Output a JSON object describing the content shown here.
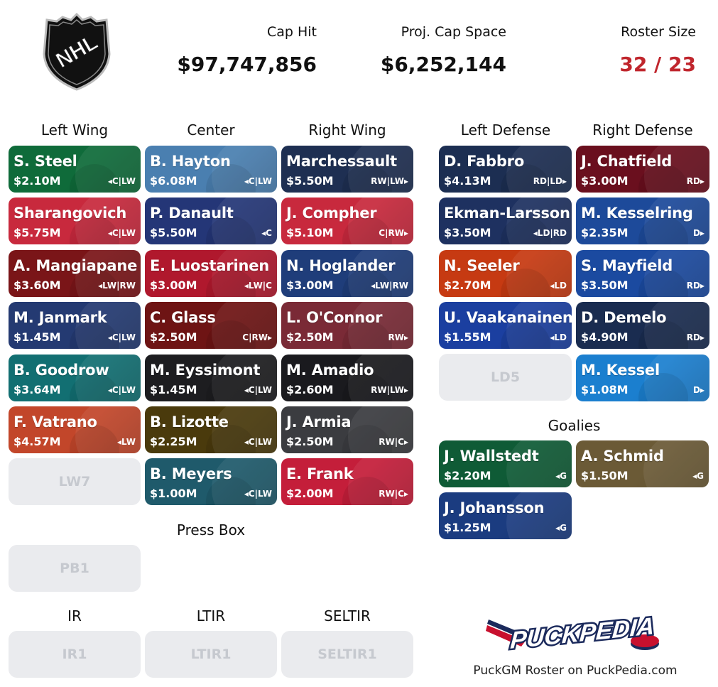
{
  "header": {
    "logo_text": "NHL",
    "cap_hit_label": "Cap Hit",
    "cap_hit_value": "$97,747,856",
    "cap_space_label": "Proj. Cap Space",
    "cap_space_value": "$6,252,144",
    "roster_size_label": "Roster Size",
    "roster_size_value": "32 / 23"
  },
  "sections": {
    "left_wing": "Left Wing",
    "center": "Center",
    "right_wing": "Right Wing",
    "left_defense": "Left Defense",
    "right_defense": "Right Defense",
    "goalies": "Goalies",
    "press_box": "Press Box",
    "ir": "IR",
    "ltir": "LTIR",
    "seltir": "SELTIR"
  },
  "left_wing": [
    {
      "name": "S. Steel",
      "salary": "$2.10M",
      "pos": "◂C|LW",
      "color": "#0f6b3a"
    },
    {
      "name": "Sharangovich",
      "salary": "$5.75M",
      "pos": "◂C|LW",
      "color": "#c8293d"
    },
    {
      "name": "A. Mangiapane",
      "salary": "$3.60M",
      "pos": "◂LW|RW",
      "color": "#7a1518"
    },
    {
      "name": "M. Janmark",
      "salary": "$1.45M",
      "pos": "◂C|LW",
      "color": "#243a72"
    },
    {
      "name": "B. Goodrow",
      "salary": "$3.64M",
      "pos": "◂C|LW",
      "color": "#126f72"
    },
    {
      "name": "F. Vatrano",
      "salary": "$4.57M",
      "pos": "◂LW",
      "color": "#c2462a"
    }
  ],
  "left_wing_empty": "LW7",
  "center": [
    {
      "name": "B. Hayton",
      "salary": "$6.08M",
      "pos": "◂C|LW",
      "color": "#4a7fb0"
    },
    {
      "name": "P. Danault",
      "salary": "$5.50M",
      "pos": "◂C",
      "color": "#243677"
    },
    {
      "name": "E. Luostarinen",
      "salary": "$3.00M",
      "pos": "◂LW|C",
      "color": "#b0182d"
    },
    {
      "name": "C. Glass",
      "salary": "$2.50M",
      "pos": "C|RW▸",
      "color": "#6e1414"
    },
    {
      "name": "M. Eyssimont",
      "salary": "$1.45M",
      "pos": "◂C|LW",
      "color": "#1d1d20"
    },
    {
      "name": "B. Lizotte",
      "salary": "$2.25M",
      "pos": "◂C|LW",
      "color": "#4a3a0c"
    },
    {
      "name": "B. Meyers",
      "salary": "$1.00M",
      "pos": "◂C|LW",
      "color": "#1f5a6b"
    }
  ],
  "right_wing": [
    {
      "name": "Marchessault",
      "salary": "$5.50M",
      "pos": "RW|LW▸",
      "color": "#1e2f52"
    },
    {
      "name": "J. Compher",
      "salary": "$5.10M",
      "pos": "C|RW▸",
      "color": "#c8293d"
    },
    {
      "name": "N. Hoglander",
      "salary": "$3.00M",
      "pos": "◂LW|RW",
      "color": "#1f3d7a"
    },
    {
      "name": "L. O'Connor",
      "salary": "$2.50M",
      "pos": "RW▸",
      "color": "#7a2a36"
    },
    {
      "name": "M. Amadio",
      "salary": "$2.60M",
      "pos": "RW|LW▸",
      "color": "#1a1a1e"
    },
    {
      "name": "J. Armia",
      "salary": "$2.50M",
      "pos": "RW|C▸",
      "color": "#3b3c40"
    },
    {
      "name": "E. Frank",
      "salary": "$2.00M",
      "pos": "RW|C▸",
      "color": "#c41e3a"
    }
  ],
  "left_defense": [
    {
      "name": "D. Fabbro",
      "salary": "$4.13M",
      "pos": "RD|LD▸",
      "color": "#1c2e52"
    },
    {
      "name": "Ekman-Larsson",
      "salary": "$3.50M",
      "pos": "◂LD|RD",
      "color": "#1e3160"
    },
    {
      "name": "N. Seeler",
      "salary": "$2.70M",
      "pos": "◂LD",
      "color": "#c63a12"
    },
    {
      "name": "U. Vaakanainen",
      "salary": "$1.55M",
      "pos": "◂LD",
      "color": "#1b3fa0"
    }
  ],
  "left_defense_empty": "LD5",
  "right_defense": [
    {
      "name": "J. Chatfield",
      "salary": "$3.00M",
      "pos": "RD▸",
      "color": "#6a0f1e"
    },
    {
      "name": "M. Kesselring",
      "salary": "$2.35M",
      "pos": "D▸",
      "color": "#1d4a9a"
    },
    {
      "name": "S. Mayfield",
      "salary": "$3.50M",
      "pos": "RD▸",
      "color": "#1b4aa0"
    },
    {
      "name": "D. Demelo",
      "salary": "$4.90M",
      "pos": "RD▸",
      "color": "#1a2c50"
    },
    {
      "name": "M. Kessel",
      "salary": "$1.08M",
      "pos": "D▸",
      "color": "#1b7fcf"
    }
  ],
  "goalies": [
    {
      "name": "J. Wallstedt",
      "salary": "$2.20M",
      "pos": "◂G",
      "color": "#0f5b36"
    },
    {
      "name": "A. Schmid",
      "salary": "$1.50M",
      "pos": "◂G",
      "color": "#6b5a36"
    },
    {
      "name": "J. Johansson",
      "salary": "$1.25M",
      "pos": "◂G",
      "color": "#1b3c80"
    }
  ],
  "press_box_empty": "PB1",
  "ir_empty": "IR1",
  "ltir_empty": "LTIR1",
  "seltir_empty": "SELTIR1",
  "footer": {
    "brand_logo_text": "PUCKPEDIA",
    "brand_text": "PuckGM Roster on PuckPedia.com"
  }
}
